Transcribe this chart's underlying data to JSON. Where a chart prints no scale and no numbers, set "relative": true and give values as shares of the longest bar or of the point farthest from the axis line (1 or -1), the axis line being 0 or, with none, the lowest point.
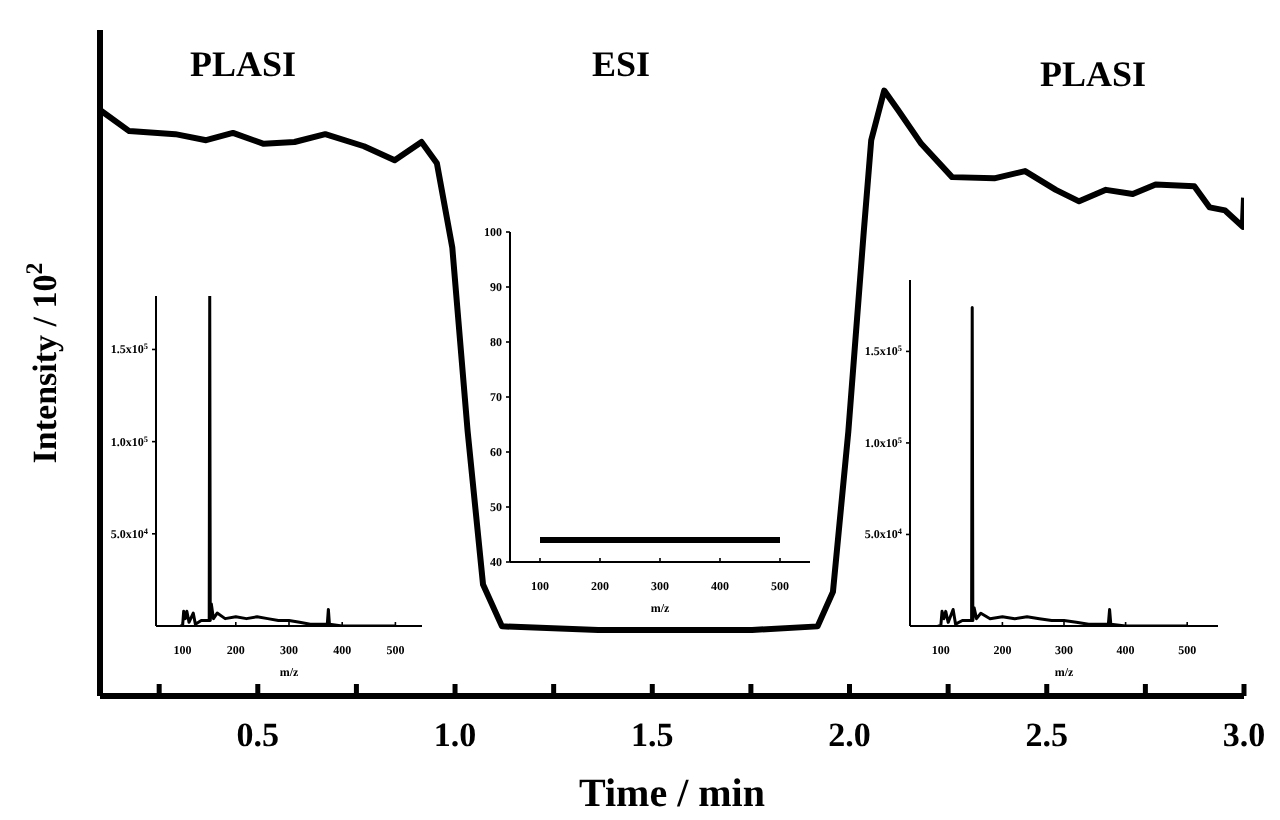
{
  "chart_data": [
    {
      "type": "line",
      "relative": true,
      "xlabel": "Time / min",
      "ylabel": "Intensity / 10$^{2}$",
      "color": "#000000",
      "annotations": [
        "PLASI",
        "ESI",
        "PLASI"
      ],
      "x": [
        0.1,
        0.174,
        0.291,
        0.369,
        0.437,
        0.515,
        0.593,
        0.671,
        0.769,
        0.847,
        0.915,
        0.954,
        0.993,
        1.032,
        1.071,
        1.119,
        1.363,
        1.753,
        1.919,
        1.958,
        1.997,
        2.036,
        2.055,
        2.088,
        2.123,
        2.182,
        2.26,
        2.367,
        2.445,
        2.523,
        2.582,
        2.65,
        2.718,
        2.776,
        2.874,
        2.913,
        2.952,
        2.997,
        3.0
      ],
      "values": [
        0.968,
        0.933,
        0.928,
        0.918,
        0.93,
        0.912,
        0.915,
        0.928,
        0.908,
        0.885,
        0.915,
        0.88,
        0.741,
        0.437,
        0.184,
        0.115,
        0.109,
        0.109,
        0.115,
        0.172,
        0.437,
        0.766,
        0.918,
        1,
        0.968,
        0.912,
        0.857,
        0.855,
        0.867,
        0.836,
        0.817,
        0.836,
        0.829,
        0.845,
        0.842,
        0.807,
        0.802,
        0.775,
        0.823
      ],
      "xlim": [
        0.1,
        3.0
      ],
      "xticks": [
        {
          "value": 0.25,
          "label": null
        },
        0.5,
        {
          "value": 0.75,
          "label": null
        },
        "1.0",
        {
          "value": 1.25,
          "label": null
        },
        1.5,
        {
          "value": 1.75,
          "label": null
        },
        "2.0",
        {
          "value": 2.25,
          "label": null
        },
        2.5,
        {
          "value": 2.75,
          "label": null
        },
        "3.0"
      ]
    },
    {
      "type": "line",
      "xlabel": "m/z",
      "color": "#000000",
      "x": [
        95,
        100,
        102,
        105,
        108,
        112,
        120,
        124,
        135,
        145,
        150,
        151,
        152,
        154,
        158,
        165,
        180,
        200,
        220,
        240,
        260,
        280,
        300,
        320,
        340,
        372,
        374,
        376,
        400,
        450,
        500
      ],
      "values": [
        0,
        0,
        8000,
        4000,
        8000,
        2000,
        7000,
        1000,
        3000,
        3000,
        3000,
        179000,
        3000,
        12000,
        4000,
        7000,
        4000,
        5000,
        4000,
        5000,
        4000,
        3000,
        3000,
        2000,
        1000,
        1000,
        9000,
        1000,
        0,
        0,
        0
      ],
      "xlim": [
        50,
        550
      ],
      "xticks": [
        100,
        200,
        300,
        400,
        500
      ],
      "ylim": [
        0,
        179000
      ],
      "yticks": [
        {
          "value": 50000,
          "label": "5.0x10$^{4}$"
        },
        {
          "value": 100000,
          "label": "1.0x10$^{5}$"
        },
        {
          "value": 150000,
          "label": "1.5x10$^{5}$"
        }
      ]
    },
    {
      "type": "line",
      "xlabel": "m/z",
      "color": "#000000",
      "x": [
        100,
        500
      ],
      "values": [
        44,
        44
      ],
      "xlim": [
        50,
        550
      ],
      "xticks": [
        100,
        200,
        300,
        400,
        500
      ],
      "ylim": [
        40,
        100
      ],
      "yticks": [
        40,
        50,
        60,
        70,
        80,
        90,
        100
      ]
    },
    {
      "type": "line",
      "xlabel": "m/z",
      "color": "#000000",
      "x": [
        95,
        100,
        102,
        105,
        108,
        112,
        120,
        124,
        135,
        145,
        150,
        151,
        152,
        154,
        158,
        165,
        180,
        200,
        220,
        240,
        260,
        280,
        300,
        320,
        340,
        372,
        374,
        376,
        400,
        450,
        500
      ],
      "values": [
        0,
        0,
        8000,
        4000,
        8000,
        2000,
        9000,
        1000,
        3000,
        3000,
        3000,
        174000,
        3000,
        10000,
        4000,
        7000,
        4000,
        5000,
        4000,
        5000,
        4000,
        3000,
        3000,
        2000,
        1000,
        1000,
        9000,
        1000,
        0,
        0,
        0
      ],
      "xlim": [
        50,
        550
      ],
      "xticks": [
        100,
        200,
        300,
        400,
        500
      ],
      "ylim": [
        0,
        189000
      ],
      "yticks": [
        {
          "value": 50000,
          "label": "5.0x10$^{4}$"
        },
        {
          "value": 100000,
          "label": "1.0x10$^{5}$"
        },
        {
          "value": 150000,
          "label": "1.5x10$^{5}$"
        }
      ]
    }
  ]
}
